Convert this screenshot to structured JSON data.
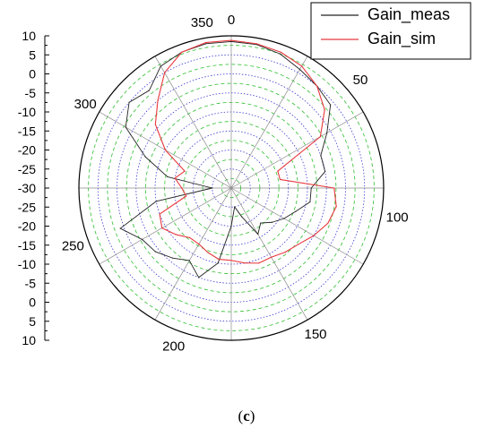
{
  "caption": {
    "open": "(",
    "label": "c",
    "close": ")"
  },
  "chart_data": {
    "type": "polar",
    "angle_ticks": [
      "0",
      "50",
      "100",
      "150",
      "200",
      "250",
      "300",
      "350"
    ],
    "angle_tick_values": [
      0,
      50,
      100,
      150,
      200,
      250,
      300,
      350
    ],
    "radial_scale_labels": [
      "10",
      "5",
      "0",
      "-5",
      "-10",
      "-15",
      "-20",
      "-25",
      "-30",
      "-25",
      "-20",
      "-15",
      "-10",
      "-5",
      "0",
      "5",
      "10"
    ],
    "rlim": [
      -30,
      10
    ],
    "grid": true,
    "legend_position": "top-right",
    "colors": {
      "meas": "#222222",
      "sim": "#e8383d",
      "angle_grid": "#8a8a8a",
      "major_ring": "#3a3ad6",
      "minor_ring": "#2fbf2f"
    },
    "series": [
      {
        "name": "Gain_meas",
        "color": "#222222",
        "theta": [
          0,
          10,
          20,
          30,
          40,
          50,
          60,
          70,
          80,
          90,
          100,
          110,
          120,
          130,
          140,
          150,
          160,
          170,
          180,
          190,
          200,
          210,
          220,
          230,
          240,
          250,
          260,
          270,
          280,
          290,
          300,
          310,
          320,
          330,
          340,
          350,
          360
        ],
        "r": [
          8.5,
          8.3,
          7.5,
          6,
          5,
          4,
          -1,
          -5,
          -5,
          -9,
          -9,
          -12,
          -14,
          -16,
          -18,
          -16,
          -22,
          -25,
          -20,
          -10,
          -5,
          -8,
          -6,
          -4,
          -3,
          1,
          -10,
          -25,
          -13,
          -6,
          2,
          5,
          3.5,
          7,
          8,
          8.5,
          8.5
        ]
      },
      {
        "name": "Gain_sim",
        "color": "#e8383d",
        "theta": [
          0,
          10,
          20,
          30,
          40,
          50,
          60,
          70,
          80,
          90,
          100,
          110,
          120,
          130,
          140,
          150,
          160,
          170,
          180,
          190,
          200,
          210,
          220,
          230,
          240,
          250,
          260,
          270,
          280,
          290,
          300,
          310,
          320,
          330,
          340,
          350,
          360
        ],
        "r": [
          8.8,
          8.5,
          8,
          7,
          5,
          2,
          -3,
          -17,
          -17,
          -3,
          -2,
          -3,
          -5,
          -7,
          -8,
          -9,
          -9,
          -10,
          -11,
          -11,
          -12,
          -13,
          -13,
          -11,
          -9,
          -10,
          -18,
          -17,
          -15,
          -17,
          -10,
          -4,
          0,
          5,
          8,
          8.8,
          8.8
        ]
      }
    ]
  }
}
